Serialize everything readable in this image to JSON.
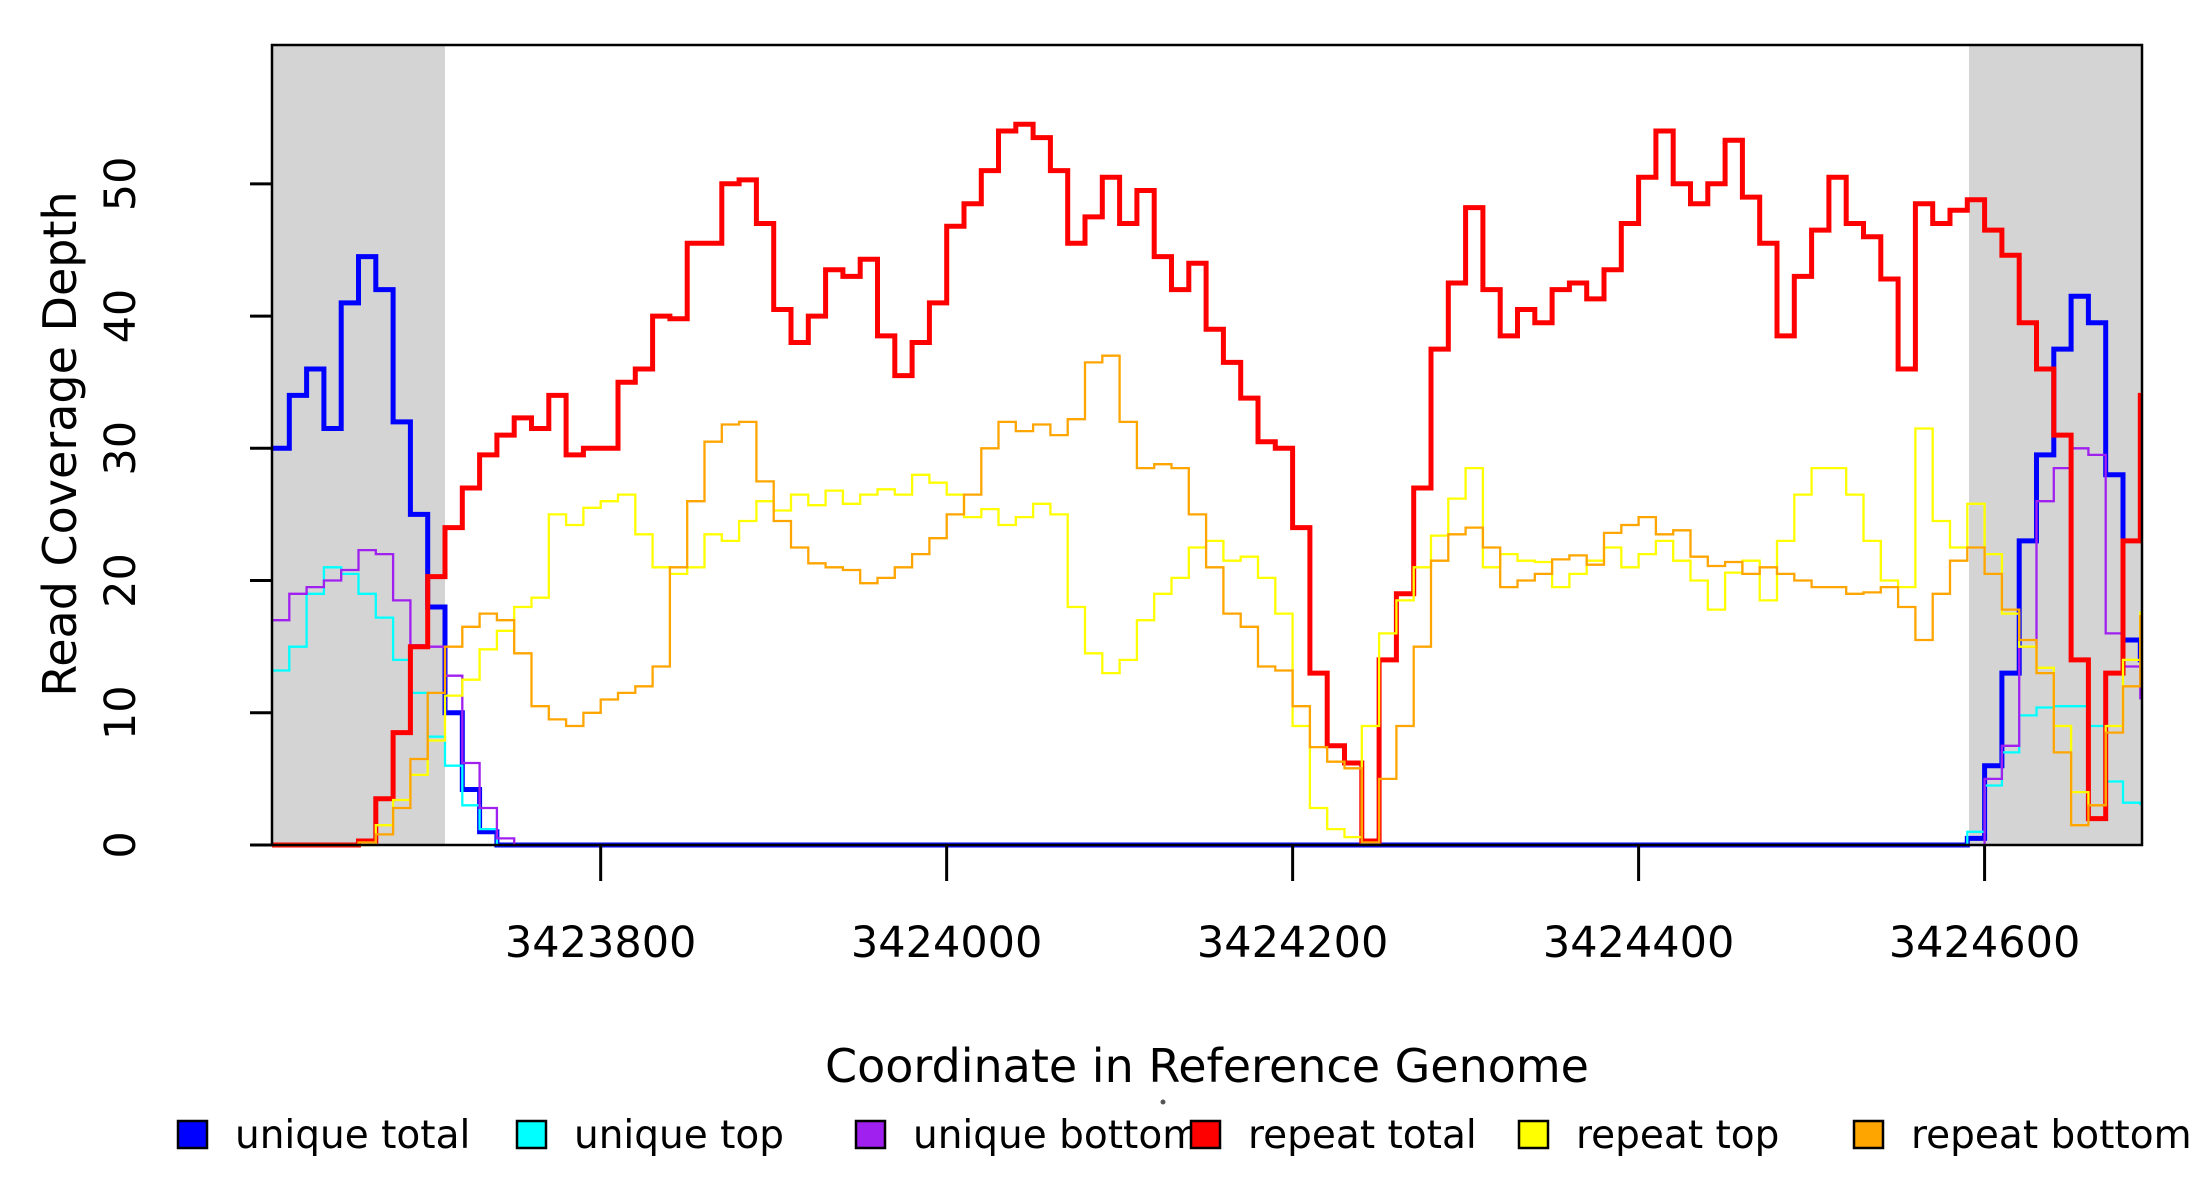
{
  "figure": {
    "xlabel": "Coordinate in Reference Genome",
    "ylabel": "Read Coverage Depth"
  },
  "legend": {
    "items": [
      {
        "label": "unique total",
        "color": "#0000FF"
      },
      {
        "label": "unique top",
        "color": "#00FFFF"
      },
      {
        "label": "unique bottom",
        "color": "#A020F0"
      },
      {
        "label": "repeat total",
        "color": "#FF0000"
      },
      {
        "label": "repeat top",
        "color": "#FFFF00"
      },
      {
        "label": "repeat bottom",
        "color": "#FFA500"
      }
    ]
  },
  "chart_data": {
    "type": "line",
    "step": true,
    "title": "",
    "xlabel": "Coordinate in Reference Genome",
    "ylabel": "Read Coverage Depth",
    "xlim": [
      3423610,
      3424691
    ],
    "ylim": [
      0,
      60.5
    ],
    "x_ticks": [
      3423800,
      3424000,
      3424200,
      3424400,
      3424600
    ],
    "y_ticks": [
      0,
      10,
      20,
      30,
      40,
      50
    ],
    "grid": false,
    "legend_position": "bottom",
    "shade_color": "#D4D4D4",
    "shaded_regions": [
      {
        "from": 3423610,
        "to": 3423710
      },
      {
        "from": 3424591,
        "to": 3424691
      }
    ],
    "x_start": 3423610,
    "x_step": 10,
    "n_points": 109,
    "series": [
      {
        "name": "unique total",
        "color": "#0000FF",
        "line_width": 5,
        "values": [
          30,
          34,
          36,
          31.5,
          41,
          44.5,
          42,
          32,
          25,
          18,
          10,
          4.2,
          1,
          0,
          0,
          0,
          0,
          0,
          0,
          0,
          0,
          0,
          0,
          0,
          0,
          0,
          0,
          0,
          0,
          0,
          0,
          0,
          0,
          0,
          0,
          0,
          0,
          0,
          0,
          0,
          0,
          0,
          0,
          0,
          0,
          0,
          0,
          0,
          0,
          0,
          0,
          0,
          0,
          0,
          0,
          0,
          0,
          0,
          0,
          0,
          0,
          0,
          0,
          0,
          0,
          0,
          0,
          0,
          0,
          0,
          0,
          0,
          0,
          0,
          0,
          0,
          0,
          0,
          0,
          0,
          0,
          0,
          0,
          0,
          0,
          0,
          0,
          0,
          0,
          0,
          0,
          0,
          0,
          0,
          0,
          0,
          0,
          0,
          0.5,
          6,
          13,
          23,
          29.5,
          37.5,
          41.5,
          39.5,
          28,
          15.5,
          14
        ]
      },
      {
        "name": "unique top",
        "color": "#00FFFF",
        "line_width": 2.3,
        "values": [
          13.2,
          15,
          19,
          21,
          20.5,
          19,
          17.2,
          14,
          11.5,
          8.2,
          6,
          3,
          1.2,
          0,
          0,
          0,
          0,
          0,
          0,
          0,
          0,
          0,
          0,
          0,
          0,
          0,
          0,
          0,
          0,
          0,
          0,
          0,
          0,
          0,
          0,
          0,
          0,
          0,
          0,
          0,
          0,
          0,
          0,
          0,
          0,
          0,
          0,
          0,
          0,
          0,
          0,
          0,
          0,
          0,
          0,
          0,
          0,
          0,
          0,
          0,
          0,
          0,
          0,
          0,
          0,
          0,
          0,
          0,
          0,
          0,
          0,
          0,
          0,
          0,
          0,
          0,
          0,
          0,
          0,
          0,
          0,
          0,
          0,
          0,
          0,
          0,
          0,
          0,
          0,
          0,
          0,
          0,
          0,
          0,
          0,
          0,
          0,
          0,
          1,
          4.5,
          7,
          9.8,
          10.4,
          10.5,
          10.5,
          9,
          4.8,
          3.2,
          3.1
        ]
      },
      {
        "name": "unique bottom",
        "color": "#A020F0",
        "line_width": 2.3,
        "values": [
          17,
          19,
          19.5,
          20,
          20.8,
          22.3,
          22,
          18.5,
          15.1,
          15,
          12.8,
          6.2,
          2.8,
          0.5,
          0,
          0,
          0,
          0,
          0,
          0,
          0,
          0,
          0,
          0,
          0,
          0,
          0,
          0,
          0,
          0,
          0,
          0,
          0,
          0,
          0,
          0,
          0,
          0,
          0,
          0,
          0,
          0,
          0,
          0,
          0,
          0,
          0,
          0,
          0,
          0,
          0,
          0,
          0,
          0,
          0,
          0,
          0,
          0,
          0,
          0,
          0,
          0,
          0,
          0,
          0,
          0,
          0,
          0,
          0,
          0,
          0,
          0,
          0,
          0,
          0,
          0,
          0,
          0,
          0,
          0,
          0,
          0,
          0,
          0,
          0,
          0,
          0,
          0,
          0,
          0,
          0,
          0,
          0,
          0,
          0,
          0,
          0,
          0,
          0,
          5,
          7.5,
          15,
          26,
          28.5,
          30,
          29.5,
          16,
          13.5,
          11.1
        ]
      },
      {
        "name": "repeat total",
        "color": "#FF0000",
        "line_width": 5,
        "values": [
          0,
          0,
          0,
          0,
          0,
          0.3,
          3.5,
          8.5,
          15,
          20.3,
          24,
          27,
          29.5,
          31,
          32.3,
          31.5,
          34,
          29.5,
          30,
          30,
          35,
          36,
          40,
          39.8,
          45.5,
          45.5,
          50,
          50.3,
          47,
          40.5,
          38,
          40,
          43.5,
          43,
          44.3,
          38.5,
          35.5,
          38,
          41,
          46.8,
          48.5,
          51,
          54,
          54.5,
          53.5,
          51,
          45.5,
          47.5,
          50.5,
          47,
          49.5,
          44.5,
          42,
          44,
          39,
          36.5,
          33.8,
          30.5,
          30,
          24,
          13,
          7.5,
          6.2,
          0.3,
          14,
          19,
          27,
          37.5,
          42.5,
          48.2,
          42,
          38.5,
          40.5,
          39.5,
          42,
          42.5,
          41.3,
          43.5,
          47,
          50.5,
          54,
          50,
          48.5,
          50,
          53.3,
          49,
          45.5,
          38.5,
          43,
          46.5,
          50.5,
          47,
          46,
          42.8,
          36,
          48.5,
          47,
          48,
          48.8,
          46.5,
          44.6,
          39.5,
          36,
          31,
          14,
          2,
          13,
          23,
          34
        ]
      },
      {
        "name": "repeat top",
        "color": "#FFFF00",
        "line_width": 2.3,
        "values": [
          0,
          0,
          0,
          0,
          0,
          0,
          1.5,
          3.4,
          5.3,
          7.9,
          11.3,
          12.5,
          14.8,
          16.2,
          18,
          18.7,
          25,
          24.2,
          25.5,
          26,
          26.5,
          23.5,
          21,
          20.5,
          21,
          23.5,
          23,
          24.5,
          26,
          25.3,
          26.5,
          25.7,
          26.8,
          25.8,
          26.5,
          26.9,
          26.5,
          28,
          27.4,
          26.5,
          24.8,
          25.4,
          24.2,
          24.8,
          25.8,
          25,
          18,
          14.5,
          13,
          14,
          17,
          19,
          20.2,
          22.5,
          23,
          21.5,
          21.8,
          20.2,
          17.5,
          9,
          2.8,
          1.2,
          0.6,
          9,
          16,
          18.5,
          21,
          23.4,
          26.2,
          28.5,
          21,
          22,
          21.5,
          21.4,
          19.5,
          20.5,
          21.5,
          22.5,
          21,
          22,
          23,
          21.5,
          20,
          17.8,
          20.6,
          21.5,
          18.5,
          23,
          26.5,
          28.5,
          28.5,
          26.5,
          23,
          20,
          19.5,
          31.5,
          24.5,
          22.5,
          25.8,
          22,
          17.5,
          15,
          13.4,
          9,
          4,
          3,
          9,
          14,
          17.6
        ]
      },
      {
        "name": "repeat bottom",
        "color": "#FFA500",
        "line_width": 2.3,
        "values": [
          0,
          0,
          0,
          0,
          0,
          0.2,
          0.8,
          2.8,
          6.5,
          11.5,
          15,
          16.5,
          17.5,
          17,
          14.5,
          10.5,
          9.5,
          9,
          10,
          11,
          11.5,
          12,
          13.5,
          21,
          26,
          30.5,
          31.8,
          32,
          27.5,
          24.5,
          22.5,
          21.3,
          21,
          20.8,
          19.8,
          20.2,
          21,
          22,
          23.2,
          25,
          26.5,
          30,
          32,
          31.3,
          31.8,
          31,
          32.2,
          36.5,
          37,
          32,
          28.5,
          28.8,
          28.5,
          25,
          21,
          17.5,
          16.5,
          13.5,
          13.2,
          10.5,
          7.4,
          6.3,
          5.8,
          0.2,
          5,
          9,
          15,
          21.5,
          23.5,
          24,
          22.5,
          19.5,
          20,
          20.5,
          21.6,
          21.9,
          21.2,
          23.6,
          24.2,
          24.8,
          23.5,
          23.8,
          21.8,
          21.1,
          21.4,
          20.5,
          21,
          20.5,
          20,
          19.5,
          19.5,
          19,
          19.1,
          19.5,
          18,
          15.5,
          19,
          21.5,
          22.5,
          20.5,
          17.8,
          15.5,
          13,
          7,
          1.5,
          3,
          8.5,
          12,
          17.3
        ]
      }
    ]
  }
}
